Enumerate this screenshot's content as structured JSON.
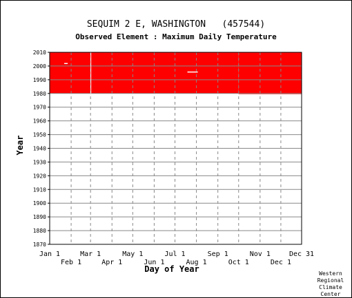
{
  "chart_data": {
    "type": "heatmap",
    "title": "SEQUIM 2 E, WASHINGTON   (457544)",
    "subtitle": "Observed Element : Maximum Daily Temperature",
    "xlabel": "Day of Year",
    "ylabel": "Year",
    "credit": [
      "Western",
      "Regional",
      "Climate",
      "Center"
    ],
    "ylim": [
      1870,
      2010
    ],
    "y_ticks": [
      1870,
      1880,
      1890,
      1900,
      1910,
      1920,
      1930,
      1940,
      1950,
      1960,
      1970,
      1980,
      1990,
      2000,
      2010
    ],
    "xlim": [
      1,
      365
    ],
    "x_ticks_upper": [
      {
        "label": "Jan 1",
        "day": 1
      },
      {
        "label": "Mar 1",
        "day": 60
      },
      {
        "label": "May 1",
        "day": 121
      },
      {
        "label": "Jul 1",
        "day": 182
      },
      {
        "label": "Sep 1",
        "day": 244
      },
      {
        "label": "Nov 1",
        "day": 305
      },
      {
        "label": "Dec 31",
        "day": 365
      }
    ],
    "x_ticks_lower": [
      {
        "label": "Feb 1",
        "day": 32
      },
      {
        "label": "Apr 1",
        "day": 91
      },
      {
        "label": "Jun 1",
        "day": 152
      },
      {
        "label": "Aug 1",
        "day": 213
      },
      {
        "label": "Oct 1",
        "day": 274
      },
      {
        "label": "Dec 1",
        "day": 335
      }
    ],
    "data_color": "#ff0000",
    "grid": true,
    "observed_blocks": [
      {
        "day_start": 1,
        "day_end": 274,
        "year_start": 1980,
        "year_end": 2010
      },
      {
        "day_start": 274,
        "day_end": 365,
        "year_start": 1979.5,
        "year_end": 2010
      }
    ],
    "missing_segments": [
      {
        "day_start": 60,
        "day_end": 61,
        "year_start": 1980,
        "year_end": 2010
      },
      {
        "day_start": 22,
        "day_end": 27,
        "year_start": 2001.5,
        "year_end": 2002.2
      },
      {
        "day_start": 200,
        "day_end": 215,
        "year_start": 1995.5,
        "year_end": 1996
      }
    ]
  }
}
